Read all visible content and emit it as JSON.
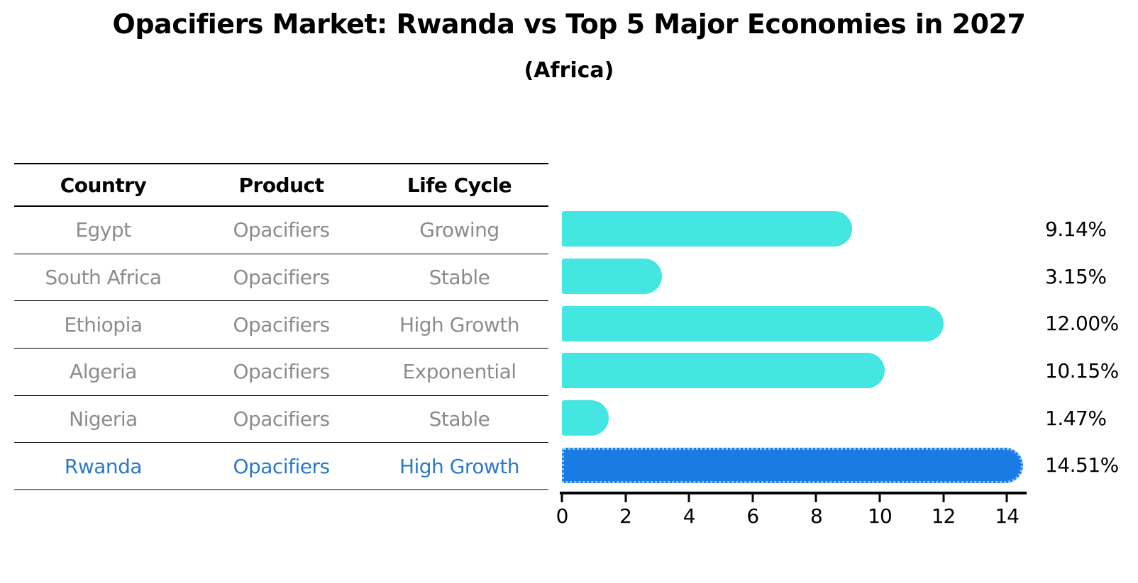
{
  "title": "Opacifiers Market: Rwanda vs Top 5 Major Economies in 2027",
  "subtitle": "(Africa)",
  "table": {
    "headers": [
      "Country",
      "Product",
      "Life Cycle"
    ],
    "rows": [
      {
        "country": "Egypt",
        "product": "Opacifiers",
        "life_cycle": "Growing",
        "highlight": false
      },
      {
        "country": "South Africa",
        "product": "Opacifiers",
        "life_cycle": "Stable",
        "highlight": false
      },
      {
        "country": "Ethiopia",
        "product": "Opacifiers",
        "life_cycle": "High Growth",
        "highlight": false
      },
      {
        "country": "Algeria",
        "product": "Opacifiers",
        "life_cycle": "Exponential",
        "highlight": false
      },
      {
        "country": "Nigeria",
        "product": "Opacifiers",
        "life_cycle": "Stable",
        "highlight": false
      },
      {
        "country": "Rwanda",
        "product": "Opacifiers",
        "life_cycle": "High Growth",
        "highlight": true
      }
    ]
  },
  "chart_data": {
    "type": "bar",
    "orientation": "horizontal",
    "title": "Opacifiers Market: Rwanda vs Top 5 Major Economies in 2027",
    "subtitle": "(Africa)",
    "categories": [
      "Egypt",
      "South Africa",
      "Ethiopia",
      "Algeria",
      "Nigeria",
      "Rwanda"
    ],
    "values": [
      9.14,
      3.15,
      12.0,
      10.15,
      1.47,
      14.51
    ],
    "value_labels": [
      "9.14%",
      "3.15%",
      "12.00%",
      "10.15%",
      "1.47%",
      "14.51%"
    ],
    "xlim": [
      0,
      14.51
    ],
    "xticks": [
      0,
      2,
      4,
      6,
      8,
      10,
      12,
      14
    ],
    "highlight_index": 5,
    "grid": false,
    "legend": false
  },
  "colors": {
    "bar": "#43e6e0",
    "highlight_bar": "#1b7be5",
    "highlight_bar_border": "#8fc6f5",
    "highlight_text": "#2979c9",
    "row_text": "#8c8c8c",
    "header_text": "#000000",
    "axis": "#000000",
    "background": "#ffffff"
  }
}
